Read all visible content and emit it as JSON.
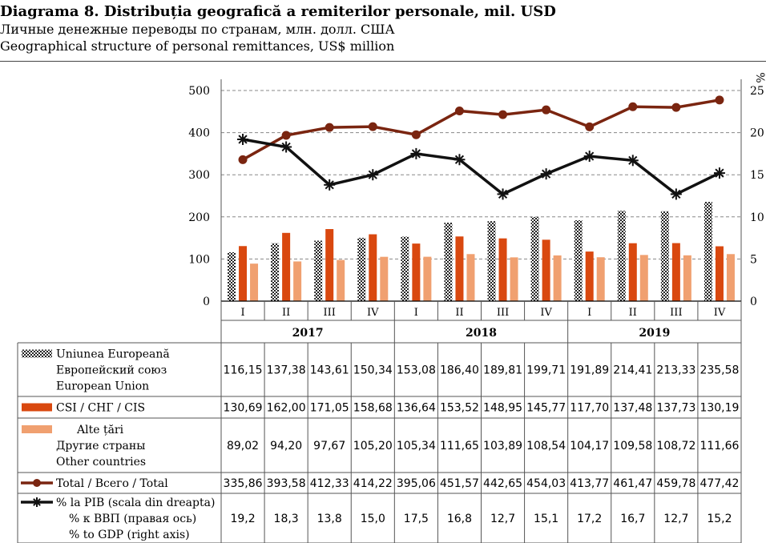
{
  "titles": {
    "ro": "Diagrama 8. Distribuția geografică a remiterilor personale, mil. USD",
    "ru": "Личные денежные переводы по странам, млн. долл. США",
    "en": "Geographical structure of personal remittances, US$ million"
  },
  "colors": {
    "eu_dark": "#222222",
    "eu_light": "#ffffff",
    "cis": "#d9480f",
    "other": "#f0a070",
    "total": "#7a2510",
    "gdp": "#111111",
    "grid": "#888888"
  },
  "chart_data": {
    "type": "bar+line",
    "quarters": [
      "I",
      "II",
      "III",
      "IV",
      "I",
      "II",
      "III",
      "IV",
      "I",
      "II",
      "III",
      "IV"
    ],
    "years": [
      "2017",
      "2018",
      "2019"
    ],
    "left_axis": {
      "ticks": [
        "0",
        "100",
        "200",
        "300",
        "400",
        "500"
      ],
      "ylim": [
        0,
        500
      ]
    },
    "right_axis": {
      "label": "%",
      "ticks": [
        "0",
        "5",
        "10",
        "15",
        "20",
        "25"
      ],
      "ylim": [
        0,
        25
      ]
    },
    "series": [
      {
        "key": "eu",
        "kind": "bar",
        "axis": "left",
        "legend": [
          "Uniunea Europeană",
          "Европейский союз",
          "European Union"
        ],
        "values": [
          116.15,
          137.38,
          143.61,
          150.34,
          153.08,
          186.4,
          189.81,
          199.71,
          191.89,
          214.41,
          213.33,
          235.58
        ],
        "labels": [
          "116,15",
          "137,38",
          "143,61",
          "150,34",
          "153,08",
          "186,40",
          "189,81",
          "199,71",
          "191,89",
          "214,41",
          "213,33",
          "235,58"
        ]
      },
      {
        "key": "cis",
        "kind": "bar",
        "axis": "left",
        "legend": [
          "CSI / СНГ / CIS"
        ],
        "values": [
          130.69,
          162.0,
          171.05,
          158.68,
          136.64,
          153.52,
          148.95,
          145.77,
          117.7,
          137.48,
          137.73,
          130.19
        ],
        "labels": [
          "130,69",
          "162,00",
          "171,05",
          "158,68",
          "136,64",
          "153,52",
          "148,95",
          "145,77",
          "117,70",
          "137,48",
          "137,73",
          "130,19"
        ]
      },
      {
        "key": "other",
        "kind": "bar",
        "axis": "left",
        "legend": [
          "Alte țări",
          "Другие страны",
          "Other countries"
        ],
        "values": [
          89.02,
          94.2,
          97.67,
          105.2,
          105.34,
          111.65,
          103.89,
          108.54,
          104.17,
          109.58,
          108.72,
          111.66
        ],
        "labels": [
          "89,02",
          "94,20",
          "97,67",
          "105,20",
          "105,34",
          "111,65",
          "103,89",
          "108,54",
          "104,17",
          "109,58",
          "108,72",
          "111,66"
        ]
      },
      {
        "key": "total",
        "kind": "line",
        "axis": "left",
        "legend": [
          "Total / Всего / Total"
        ],
        "values": [
          335.86,
          393.58,
          412.33,
          414.22,
          395.06,
          451.57,
          442.65,
          454.03,
          413.77,
          461.47,
          459.78,
          477.42
        ],
        "labels": [
          "335,86",
          "393,58",
          "412,33",
          "414,22",
          "395,06",
          "451,57",
          "442,65",
          "454,03",
          "413,77",
          "461,47",
          "459,78",
          "477,42"
        ]
      },
      {
        "key": "gdp",
        "kind": "line",
        "axis": "right",
        "legend": [
          "% la PIB (scala din dreapta)",
          "% к ВВП (правая ось)",
          "% to GDP (right axis)"
        ],
        "values": [
          19.2,
          18.3,
          13.8,
          15.0,
          17.5,
          16.8,
          12.7,
          15.1,
          17.2,
          16.7,
          12.7,
          15.2
        ],
        "labels": [
          "19,2",
          "18,3",
          "13,8",
          "15,0",
          "17,5",
          "16,8",
          "12,7",
          "15,1",
          "17,2",
          "16,7",
          "12,7",
          "15,2"
        ]
      }
    ]
  }
}
